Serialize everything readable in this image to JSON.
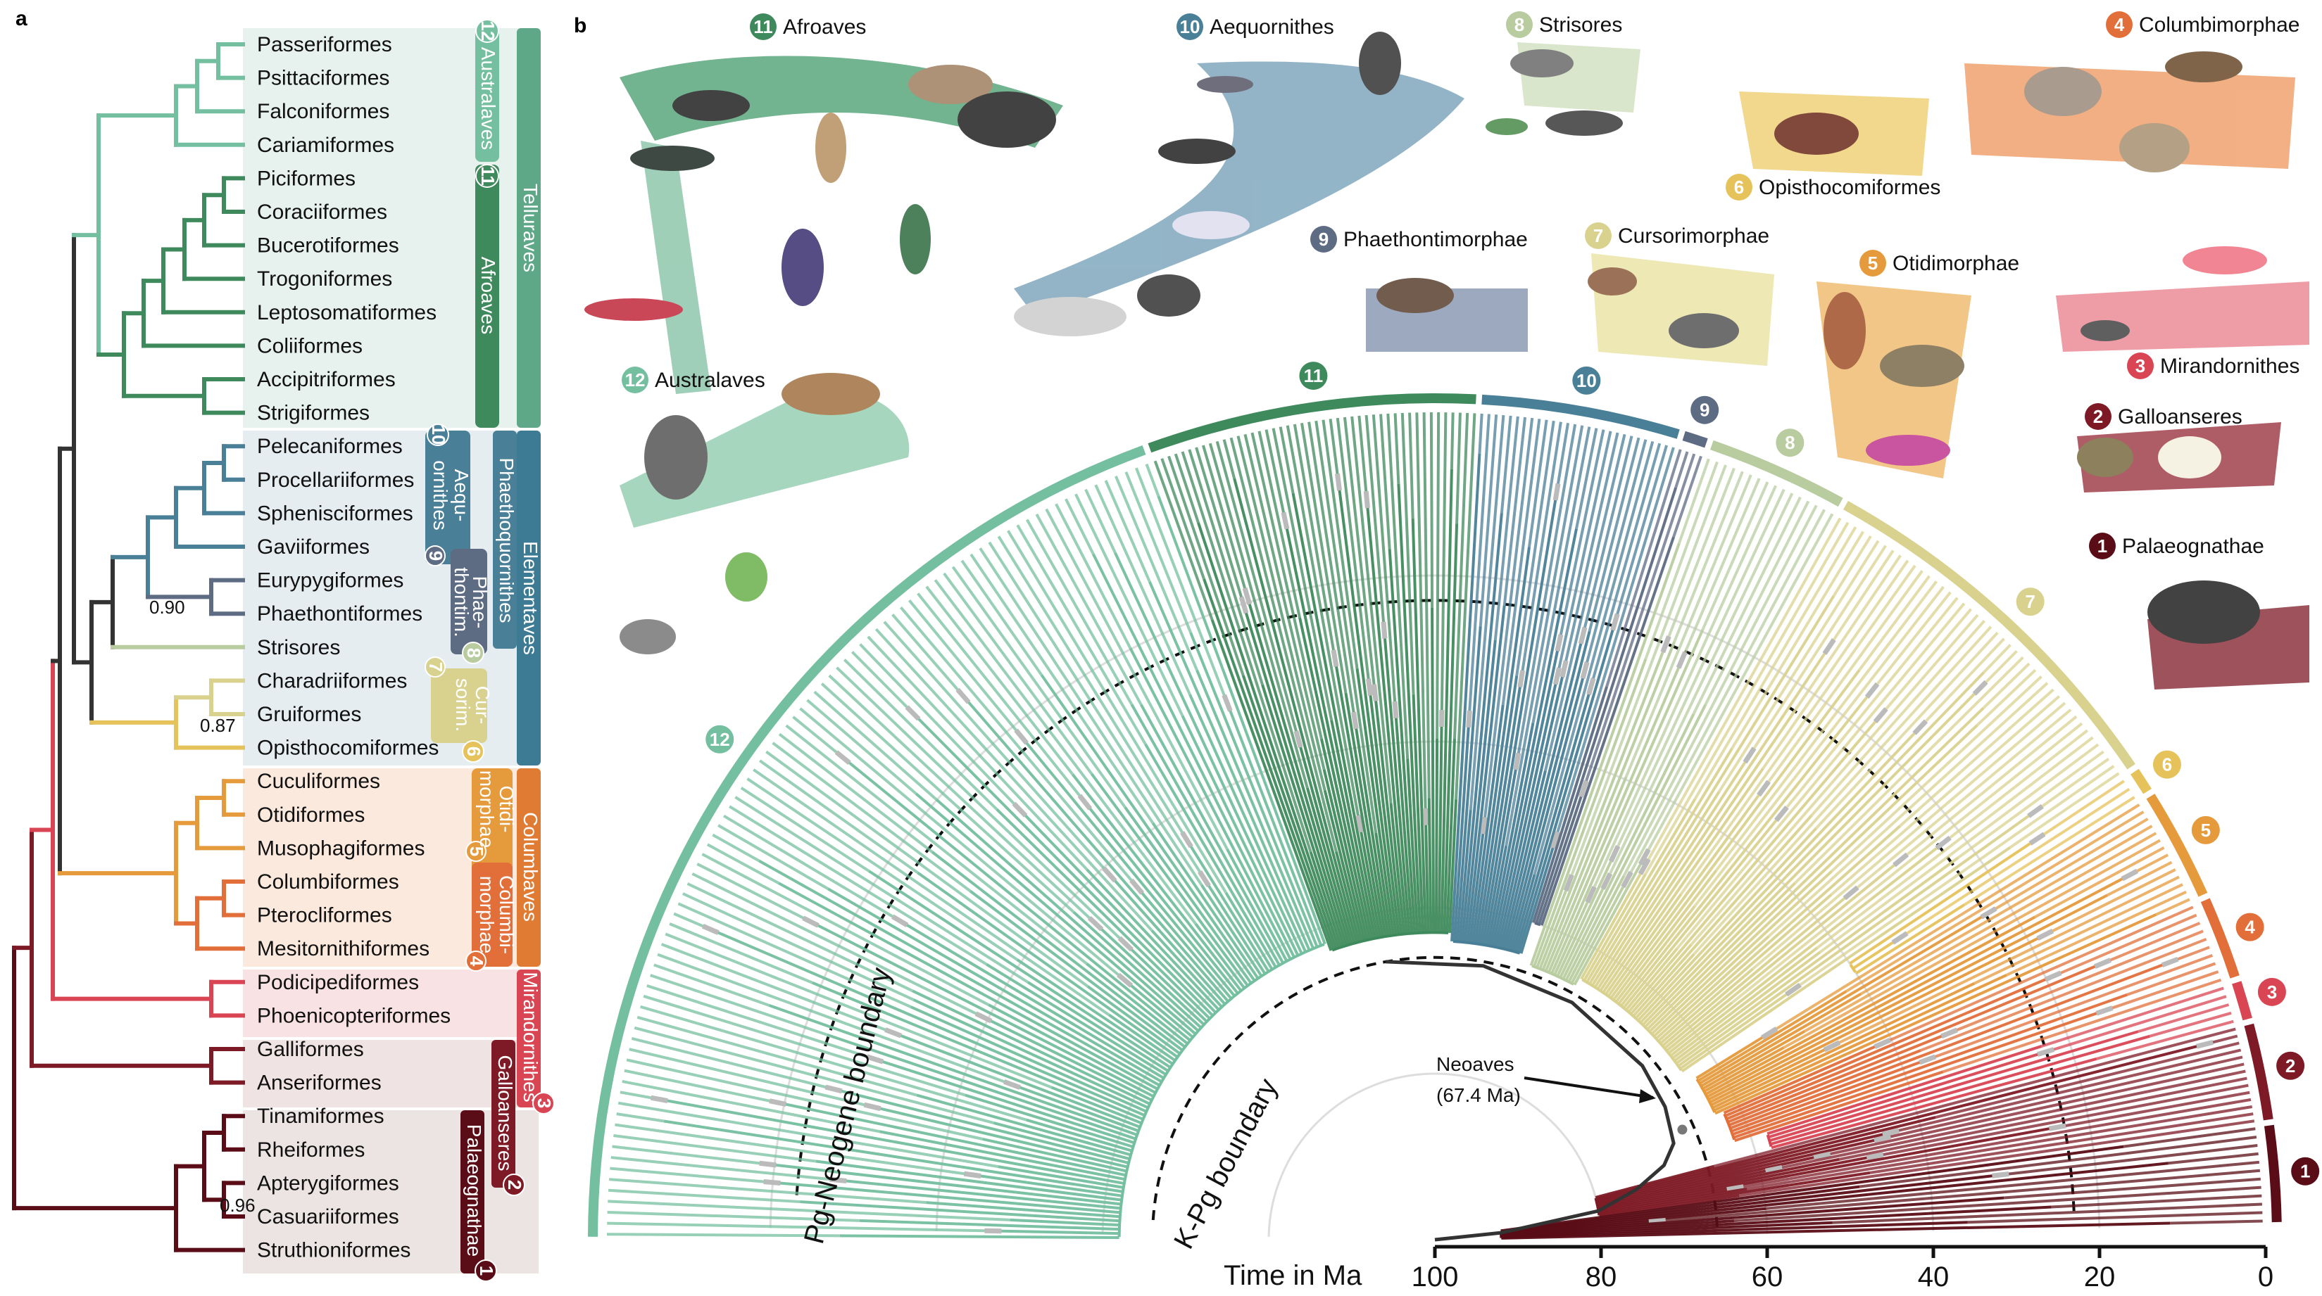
{
  "panels": {
    "a": "a",
    "b": "b"
  },
  "colors": {
    "australaves": "#74bf9f",
    "afroaves": "#3f8a5c",
    "aequornithes": "#497f97",
    "phaethontimorphae": "#5d6b83",
    "strisores": "#b8cca0",
    "cursorimorphae": "#d9d28f",
    "opisthocomiformes": "#e5c25a",
    "otidimorphae": "#e59a3c",
    "columbimorphae": "#e26f3a",
    "mirandornithes": "#d94553",
    "galloanseres": "#7e1a25",
    "palaeognathae": "#5a0d16",
    "backbone": "#333333"
  },
  "orders": [
    "Passeriformes",
    "Psittaciformes",
    "Falconiformes",
    "Cariamiformes",
    "Piciformes",
    "Coraciiformes",
    "Bucerotiformes",
    "Trogoniformes",
    "Leptosomatiformes",
    "Coliiformes",
    "Accipitriformes",
    "Strigiformes",
    "Pelecaniformes",
    "Procellariiformes",
    "Sphenisciformes",
    "Gaviiformes",
    "Eurypygiformes",
    "Phaethontiformes",
    "Strisores",
    "Charadriiformes",
    "Gruiformes",
    "Opisthocomiformes",
    "Cuculiformes",
    "Otidiformes",
    "Musophagiformes",
    "Columbiformes",
    "Pterocliformes",
    "Mesitornithiformes",
    "Podicipediformes",
    "Phoenicopteriformes",
    "Galliformes",
    "Anseriformes",
    "Tinamiformes",
    "Rheiformes",
    "Apterygiformes",
    "Casuariiformes",
    "Struthioniformes"
  ],
  "support_values": [
    "0.90",
    "0.87",
    "0.96"
  ],
  "groups": {
    "australaves": {
      "num": "12",
      "name": "Australaves"
    },
    "afroaves": {
      "num": "11",
      "name": "Afroaves"
    },
    "aequornithes": {
      "num": "10",
      "name_line1": "Aequ-",
      "name_line2": "ornithes"
    },
    "phaethontimorphae": {
      "num": "9",
      "name_line1": "Phae-",
      "name_line2": "thontim."
    },
    "strisores": {
      "num": "8"
    },
    "cursorimorphae": {
      "num": "7",
      "name_line1": "Cur-",
      "name_line2": "sorim."
    },
    "opisthocomiformes": {
      "num": "6"
    },
    "otidimorphae": {
      "num": "5",
      "name_line1": "Otidi-",
      "name_line2": "morphae"
    },
    "columbimorphae": {
      "num": "4",
      "name_line1": "Columbi-",
      "name_line2": "morphae"
    },
    "mirandornithes": {
      "num": "3",
      "name": "Mirandornithes"
    },
    "galloanseres": {
      "num": "2",
      "name": "Galloanseres"
    },
    "palaeognathae": {
      "num": "1",
      "name": "Palaeognathae"
    },
    "telluraves": "Telluraves",
    "phaethoquornithes": "Phaethoquornithes",
    "elementaves": "Elementaves",
    "columbaves": "Columbaves"
  },
  "clade_headings": [
    {
      "num": "11",
      "name": "Afroaves"
    },
    {
      "num": "10",
      "name": "Aequornithes"
    },
    {
      "num": "8",
      "name": "Strisores"
    },
    {
      "num": "4",
      "name": "Columbimorphae"
    },
    {
      "num": "6",
      "name": "Opisthocomiformes"
    },
    {
      "num": "9",
      "name": "Phaethontimorphae"
    },
    {
      "num": "7",
      "name": "Cursorimorphae"
    },
    {
      "num": "5",
      "name": "Otidimorphae"
    },
    {
      "num": "3",
      "name": "Mirandornithes"
    },
    {
      "num": "2",
      "name": "Galloanseres"
    },
    {
      "num": "1",
      "name": "Palaeognathae"
    },
    {
      "num": "12",
      "name": "Australaves"
    }
  ],
  "arc_numbers": [
    "11",
    "10",
    "9",
    "8",
    "7",
    "6",
    "5",
    "4",
    "3",
    "2",
    "1",
    "12"
  ],
  "boundaries": {
    "pg_neogene": "Pg-Neogene boundary",
    "kpg": "K-Pg boundary"
  },
  "neoaves": {
    "line1": "Neoaves",
    "line2": "(67.4 Ma)"
  },
  "axis": {
    "title": "Time in Ma",
    "ticks": [
      "100",
      "80",
      "60",
      "40",
      "20",
      "0"
    ]
  }
}
